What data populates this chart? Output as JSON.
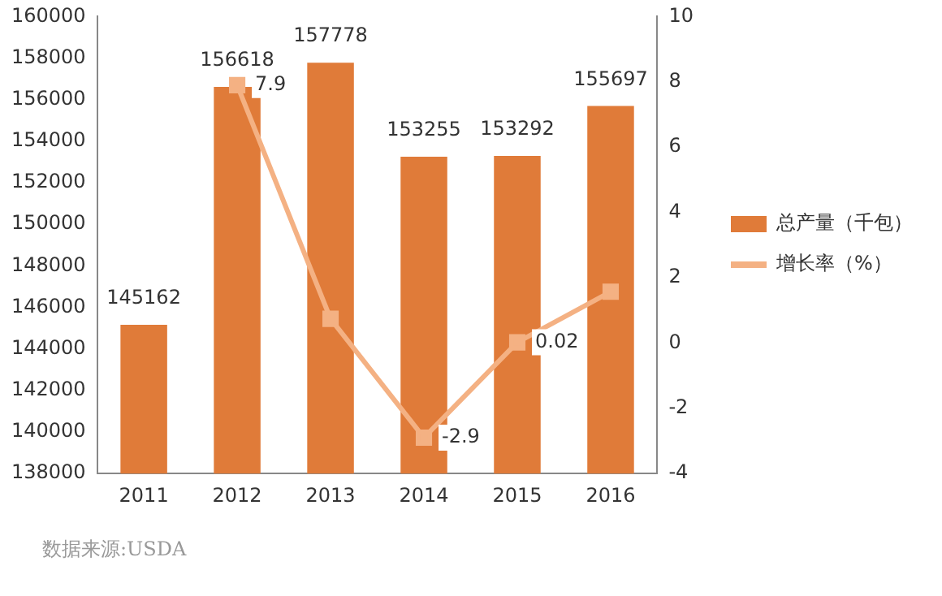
{
  "chart_data": {
    "type": "bar",
    "categories": [
      "2011",
      "2012",
      "2013",
      "2014",
      "2015",
      "2016"
    ],
    "series": [
      {
        "name": "总产量（千包）",
        "color": "#e07b39",
        "values": [
          145162,
          156618,
          157778,
          153255,
          153292,
          155697
        ],
        "value_labels": [
          "145162",
          "156618",
          "157778",
          "153255",
          "153292",
          "155697"
        ]
      },
      {
        "name": "增长率（%）",
        "type": "line",
        "axis": "y2",
        "color": "#f4b183",
        "values": [
          null,
          7.9,
          0.74,
          -2.9,
          0.02,
          1.57
        ],
        "value_labels": [
          null,
          "7.9",
          null,
          "-2.9",
          "0.02",
          null
        ]
      }
    ],
    "ylim": [
      138000,
      160000
    ],
    "yticks": [
      138000,
      140000,
      142000,
      144000,
      146000,
      148000,
      150000,
      152000,
      154000,
      156000,
      158000,
      160000
    ],
    "y2lim": [
      -4,
      10
    ],
    "y2ticks": [
      -4,
      -2,
      0,
      2,
      4,
      6,
      8,
      10
    ],
    "grid": false,
    "legend": "right",
    "marker": "square",
    "line_style": "solid",
    "annotations": [
      "数据来源:USDA"
    ]
  }
}
